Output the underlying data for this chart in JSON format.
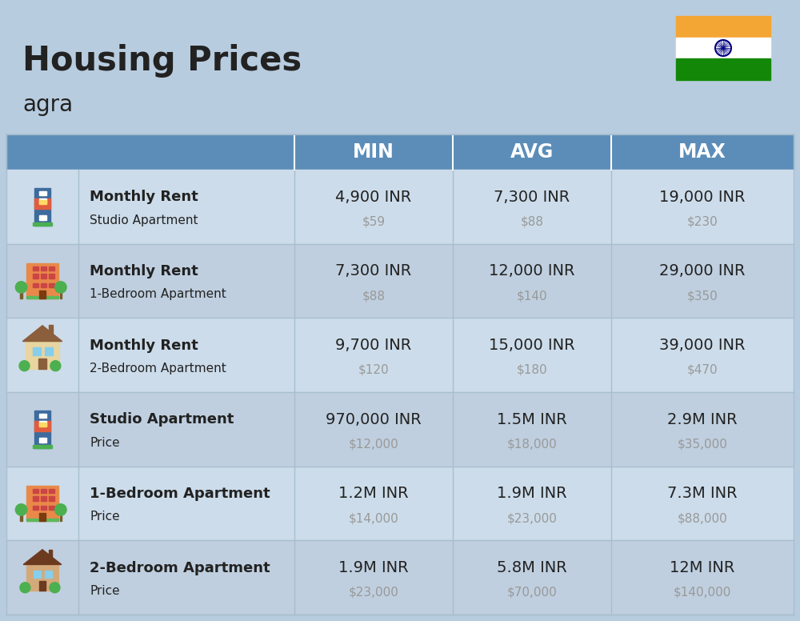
{
  "title": "Housing Prices",
  "subtitle": "agra",
  "bg_color": "#b8ccdf",
  "header_bg": "#5b8db8",
  "header_text_color": "#ffffff",
  "row_bg_even": "#ccdcea",
  "row_bg_odd": "#bfcfdf",
  "col_headers": [
    "MIN",
    "AVG",
    "MAX"
  ],
  "rows": [
    {
      "bold_label": "Monthly Rent",
      "sub_label": "Studio Apartment",
      "min_inr": "4,900 INR",
      "min_usd": "$59",
      "avg_inr": "7,300 INR",
      "avg_usd": "$88",
      "max_inr": "19,000 INR",
      "max_usd": "$230",
      "icon_type": "blue_office"
    },
    {
      "bold_label": "Monthly Rent",
      "sub_label": "1-Bedroom Apartment",
      "min_inr": "7,300 INR",
      "min_usd": "$88",
      "avg_inr": "12,000 INR",
      "avg_usd": "$140",
      "max_inr": "29,000 INR",
      "max_usd": "$350",
      "icon_type": "orange_apartment"
    },
    {
      "bold_label": "Monthly Rent",
      "sub_label": "2-Bedroom Apartment",
      "min_inr": "9,700 INR",
      "min_usd": "$120",
      "avg_inr": "15,000 INR",
      "avg_usd": "$180",
      "max_inr": "39,000 INR",
      "max_usd": "$470",
      "icon_type": "tan_house"
    },
    {
      "bold_label": "Studio Apartment",
      "sub_label": "Price",
      "min_inr": "970,000 INR",
      "min_usd": "$12,000",
      "avg_inr": "1.5M INR",
      "avg_usd": "$18,000",
      "max_inr": "2.9M INR",
      "max_usd": "$35,000",
      "icon_type": "blue_office"
    },
    {
      "bold_label": "1-Bedroom Apartment",
      "sub_label": "Price",
      "min_inr": "1.2M INR",
      "min_usd": "$14,000",
      "avg_inr": "1.9M INR",
      "avg_usd": "$23,000",
      "max_inr": "7.3M INR",
      "max_usd": "$88,000",
      "icon_type": "orange_apartment"
    },
    {
      "bold_label": "2-Bedroom Apartment",
      "sub_label": "Price",
      "min_inr": "1.9M INR",
      "min_usd": "$23,000",
      "avg_inr": "5.8M INR",
      "avg_usd": "$70,000",
      "max_inr": "12M INR",
      "max_usd": "$140,000",
      "icon_type": "brown_house"
    }
  ],
  "india_flag_colors": [
    "#F4A634",
    "#FFFFFF",
    "#138808"
  ],
  "divider_color": "#a8bece",
  "text_dark": "#222222",
  "text_gray": "#999999"
}
